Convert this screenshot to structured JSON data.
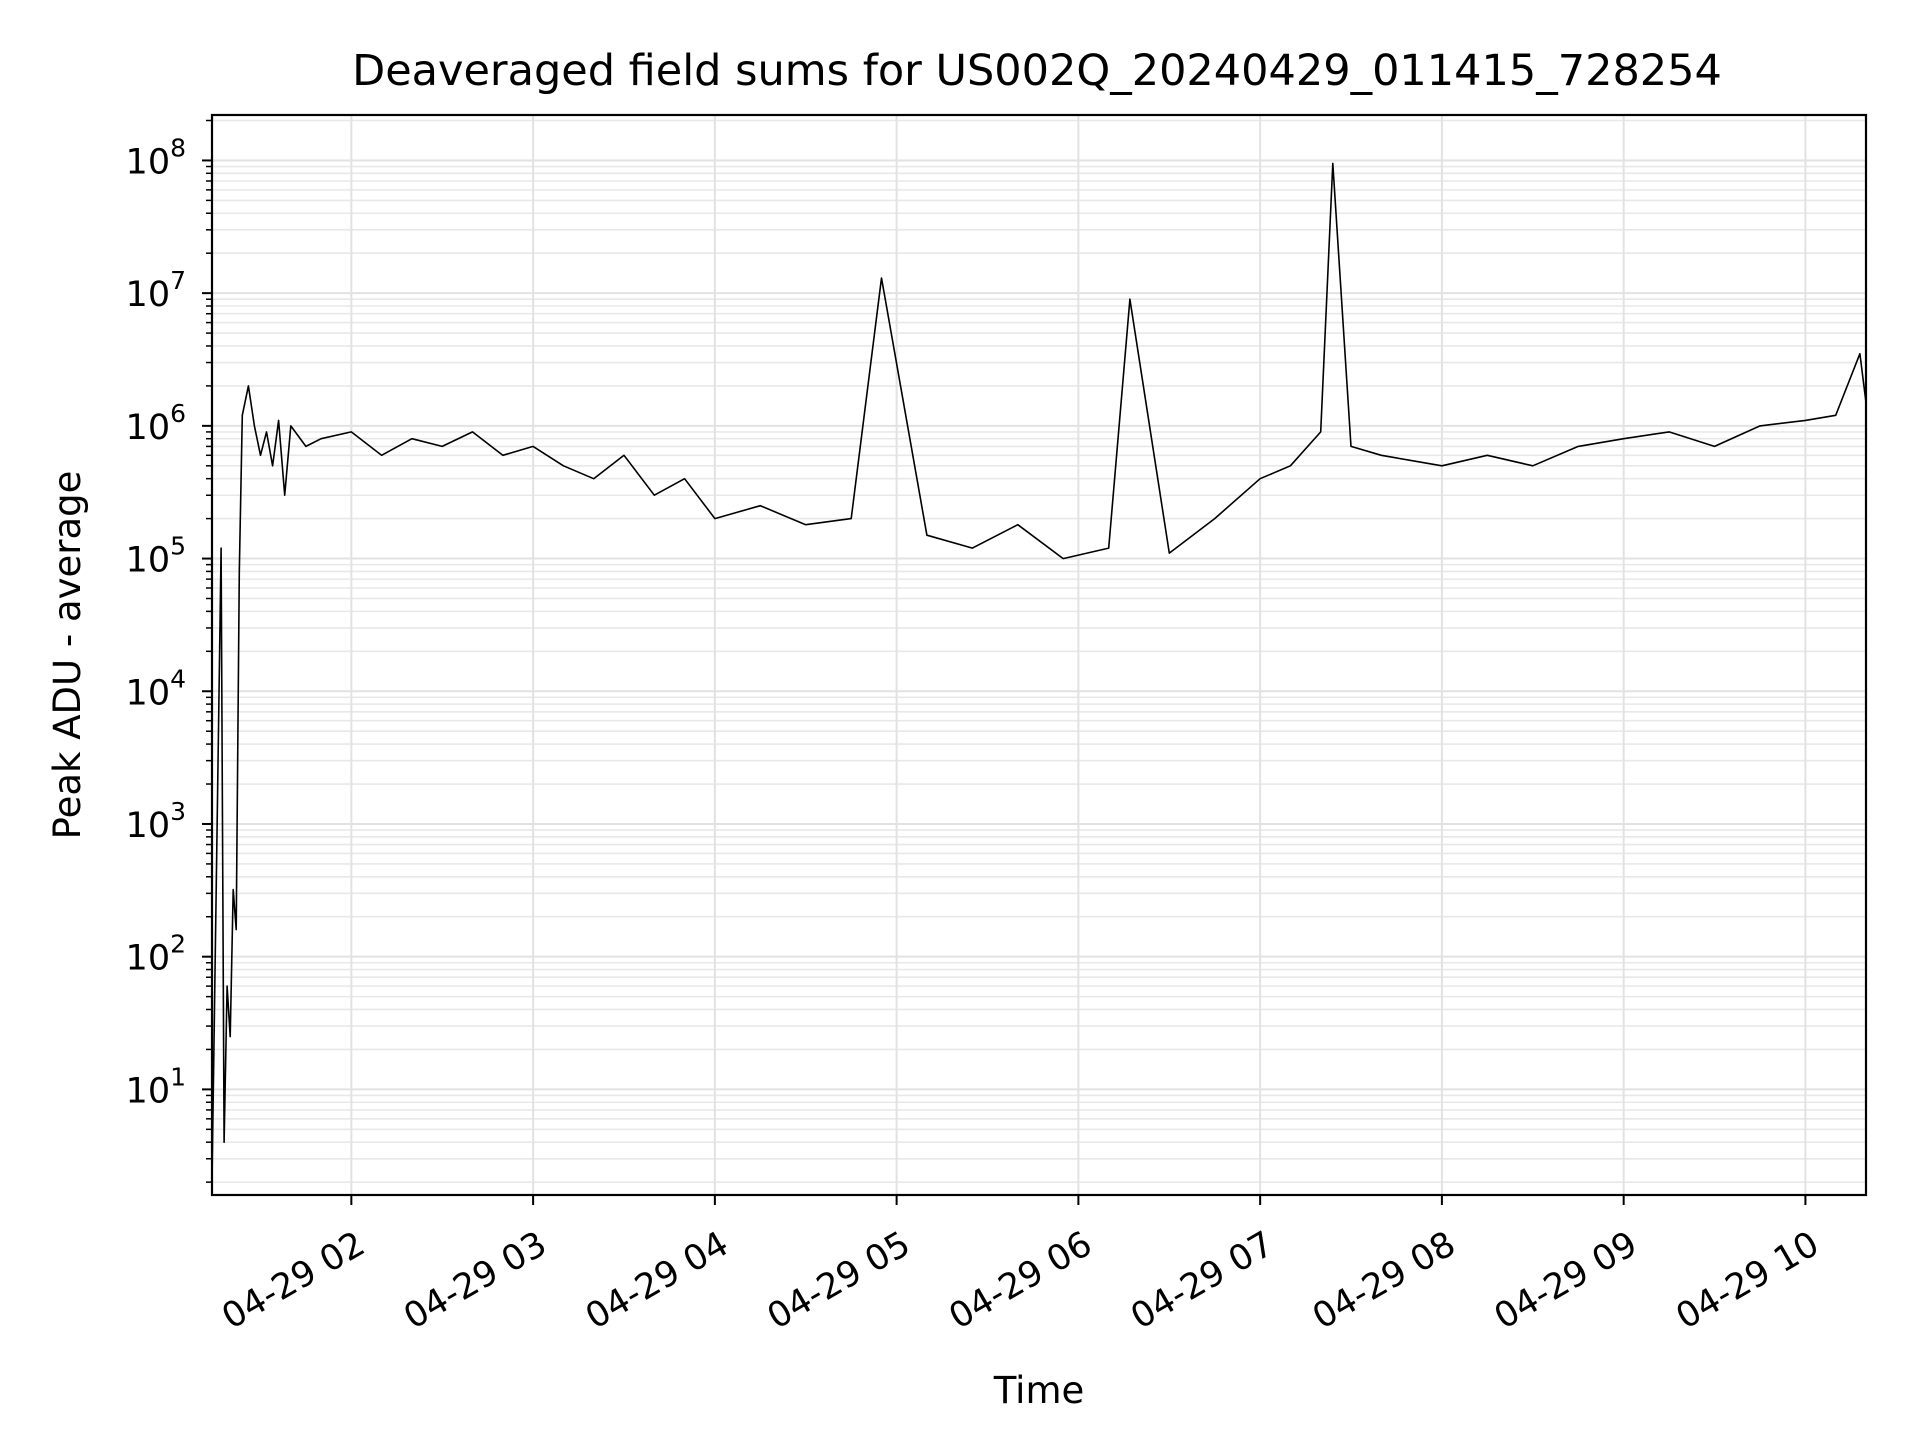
{
  "chart_data": {
    "type": "line",
    "title": "Deaveraged field sums for US002Q_20240429_011415_728254",
    "xlabel": "Time",
    "ylabel": "Peak ADU - average",
    "yscale": "log",
    "ylim": [
      1.6,
      220000000
    ],
    "xlim": [
      "2024-04-29 01:14",
      "2024-04-29 10:20"
    ],
    "grid": {
      "major": true,
      "minor": true
    },
    "line_color": "#000000",
    "x_ticks": [
      {
        "value": "2024-04-29 02:00",
        "label": "04-29 02"
      },
      {
        "value": "2024-04-29 03:00",
        "label": "04-29 03"
      },
      {
        "value": "2024-04-29 04:00",
        "label": "04-29 04"
      },
      {
        "value": "2024-04-29 05:00",
        "label": "04-29 05"
      },
      {
        "value": "2024-04-29 06:00",
        "label": "04-29 06"
      },
      {
        "value": "2024-04-29 07:00",
        "label": "04-29 07"
      },
      {
        "value": "2024-04-29 08:00",
        "label": "04-29 08"
      },
      {
        "value": "2024-04-29 09:00",
        "label": "04-29 09"
      },
      {
        "value": "2024-04-29 10:00",
        "label": "04-29 10"
      }
    ],
    "y_ticks": [
      {
        "value": 10,
        "base": "10",
        "exp": "1"
      },
      {
        "value": 100,
        "base": "10",
        "exp": "2"
      },
      {
        "value": 1000,
        "base": "10",
        "exp": "3"
      },
      {
        "value": 10000,
        "base": "10",
        "exp": "4"
      },
      {
        "value": 100000,
        "base": "10",
        "exp": "5"
      },
      {
        "value": 1000000,
        "base": "10",
        "exp": "6"
      },
      {
        "value": 10000000,
        "base": "10",
        "exp": "7"
      },
      {
        "value": 100000000,
        "base": "10",
        "exp": "8"
      }
    ],
    "series": [
      {
        "x": [
          "2024-04-29 01:14",
          "2024-04-29 01:17",
          "2024-04-29 01:18",
          "2024-04-29 01:19",
          "2024-04-29 01:20",
          "2024-04-29 01:21",
          "2024-04-29 01:22",
          "2024-04-29 01:23",
          "2024-04-29 01:24",
          "2024-04-29 01:26",
          "2024-04-29 01:28",
          "2024-04-29 01:30",
          "2024-04-29 01:32",
          "2024-04-29 01:34",
          "2024-04-29 01:36",
          "2024-04-29 01:38",
          "2024-04-29 01:40",
          "2024-04-29 01:45",
          "2024-04-29 01:50",
          "2024-04-29 02:00",
          "2024-04-29 02:10",
          "2024-04-29 02:20",
          "2024-04-29 02:30",
          "2024-04-29 02:40",
          "2024-04-29 02:50",
          "2024-04-29 03:00",
          "2024-04-29 03:10",
          "2024-04-29 03:20",
          "2024-04-29 03:30",
          "2024-04-29 03:40",
          "2024-04-29 03:50",
          "2024-04-29 04:00",
          "2024-04-29 04:15",
          "2024-04-29 04:30",
          "2024-04-29 04:45",
          "2024-04-29 04:55",
          "2024-04-29 05:10",
          "2024-04-29 05:25",
          "2024-04-29 05:40",
          "2024-04-29 05:55",
          "2024-04-29 06:10",
          "2024-04-29 06:17",
          "2024-04-29 06:30",
          "2024-04-29 06:45",
          "2024-04-29 07:00",
          "2024-04-29 07:10",
          "2024-04-29 07:20",
          "2024-04-29 07:24",
          "2024-04-29 07:30",
          "2024-04-29 07:40",
          "2024-04-29 08:00",
          "2024-04-29 08:15",
          "2024-04-29 08:30",
          "2024-04-29 08:45",
          "2024-04-29 09:00",
          "2024-04-29 09:15",
          "2024-04-29 09:30",
          "2024-04-29 09:45",
          "2024-04-29 10:00",
          "2024-04-29 10:10",
          "2024-04-29 10:18",
          "2024-04-29 10:20"
        ],
        "y": [
          2,
          120000,
          4,
          60,
          25,
          320,
          160,
          80000,
          1200000,
          2000000,
          1000000,
          600000,
          900000,
          500000,
          1100000,
          300000,
          1000000,
          700000,
          800000,
          900000,
          600000,
          800000,
          700000,
          900000,
          600000,
          700000,
          500000,
          400000,
          600000,
          300000,
          400000,
          200000,
          250000,
          180000,
          200000,
          13000000,
          150000,
          120000,
          180000,
          100000,
          120000,
          9000000,
          110000,
          200000,
          400000,
          500000,
          900000,
          95000000,
          700000,
          600000,
          500000,
          600000,
          500000,
          700000,
          800000,
          900000,
          700000,
          1000000,
          1100000,
          1200000,
          3500000,
          1500000
        ]
      }
    ]
  }
}
